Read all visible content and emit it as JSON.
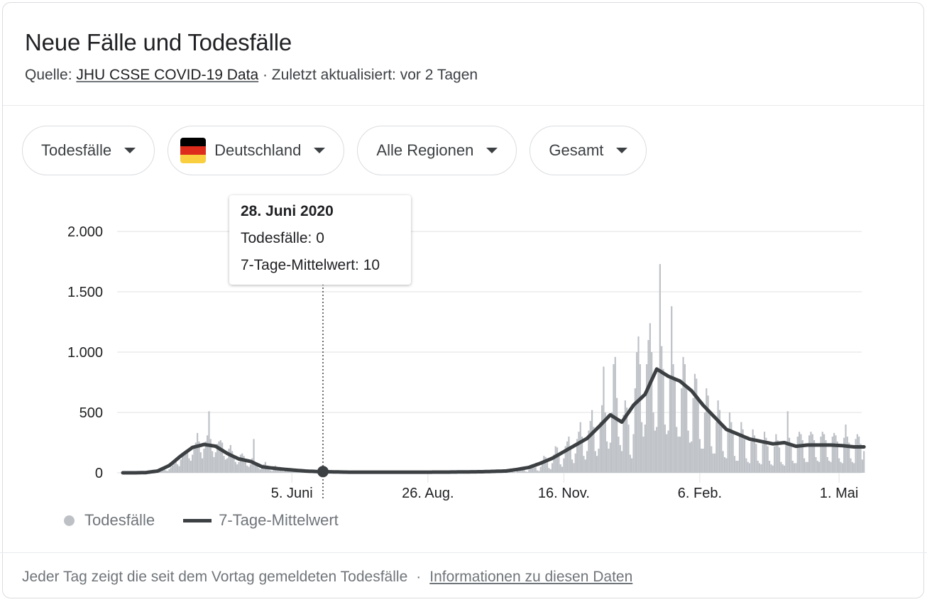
{
  "header": {
    "title": "Neue Fälle und Todesfälle",
    "source_prefix": "Quelle:",
    "source_link": "JHU CSSE COVID-19 Data",
    "updated": "· Zuletzt aktualisiert: vor 2 Tagen"
  },
  "filters": [
    {
      "label": "Todesfälle",
      "icon": "chevron-down-icon"
    },
    {
      "label": "Deutschland",
      "icon": "flag-germany-icon",
      "flag_colors": [
        "#000000",
        "#dd0000",
        "#ffce00"
      ]
    },
    {
      "label": "Alle Regionen",
      "icon": "chevron-down-icon"
    },
    {
      "label": "Gesamt",
      "icon": "chevron-down-icon"
    }
  ],
  "tooltip": {
    "date": "28. Juni 2020",
    "deaths_line": "Todesfälle: 0",
    "avg_line": "7-Tage-Mittelwert: 10"
  },
  "legend": {
    "deaths": "Todesfälle",
    "average": "7-Tage-Mittelwert"
  },
  "footer": {
    "text": "Jeder Tag zeigt die seit dem Vortag gemeldeten Todesfälle",
    "separator": "·",
    "link": "Informationen zu diesen Daten"
  },
  "colors": {
    "bars": "#bdc1c6",
    "line": "#3c4043",
    "grid": "#ebebeb",
    "axis_text": "#202124"
  },
  "chart_data": {
    "type": "bar",
    "title": "Neue Fälle und Todesfälle",
    "xlabel": "",
    "ylabel": "",
    "ylim": [
      0,
      2000
    ],
    "yticks": [
      0,
      500,
      1000,
      1500,
      2000
    ],
    "ytick_labels": [
      "0",
      "500",
      "1.000",
      "1.500",
      "2.000"
    ],
    "grid": true,
    "legend_position": "bottom-left",
    "start_date": "2020-02-24",
    "xticks": [
      {
        "day": 102,
        "label": "5. Juni"
      },
      {
        "day": 184,
        "label": "26. Aug."
      },
      {
        "day": 266,
        "label": "16. Nov."
      },
      {
        "day": 348,
        "label": "6. Feb."
      },
      {
        "day": 432,
        "label": "1. Mai"
      }
    ],
    "highlight": {
      "day": 125,
      "date": "28. Juni 2020",
      "deaths": 0,
      "avg7": 10
    },
    "series": [
      {
        "name": "Todesfälle",
        "type": "bar",
        "weekly_daily_values": [
          [
            0,
            0,
            0,
            0,
            0,
            0,
            0
          ],
          [
            0,
            0,
            0,
            0,
            0,
            0,
            1
          ],
          [
            0,
            1,
            2,
            1,
            3,
            2,
            5
          ],
          [
            5,
            10,
            15,
            20,
            25,
            20,
            15
          ],
          [
            30,
            45,
            60,
            80,
            90,
            70,
            55
          ],
          [
            110,
            140,
            160,
            180,
            170,
            120,
            100
          ],
          [
            150,
            200,
            250,
            330,
            260,
            170,
            120
          ],
          [
            200,
            260,
            310,
            510,
            280,
            180,
            130
          ],
          [
            170,
            240,
            260,
            270,
            250,
            140,
            110
          ],
          [
            120,
            200,
            230,
            180,
            140,
            90,
            70
          ],
          [
            90,
            150,
            160,
            140,
            110,
            60,
            50
          ],
          [
            70,
            120,
            280,
            90,
            80,
            40,
            30
          ],
          [
            40,
            70,
            90,
            60,
            50,
            20,
            15
          ],
          [
            30,
            60,
            50,
            40,
            30,
            15,
            10
          ],
          [
            20,
            40,
            35,
            30,
            25,
            10,
            8
          ],
          [
            15,
            30,
            25,
            20,
            18,
            8,
            5
          ],
          [
            10,
            20,
            18,
            15,
            12,
            5,
            3
          ],
          [
            8,
            12,
            15,
            10,
            8,
            0,
            0
          ],
          [
            5,
            10,
            12,
            8,
            6,
            2,
            2
          ],
          [
            4,
            8,
            10,
            6,
            5,
            2,
            1
          ],
          [
            3,
            6,
            8,
            5,
            4,
            1,
            1
          ],
          [
            3,
            6,
            8,
            5,
            4,
            1,
            1
          ],
          [
            3,
            5,
            7,
            5,
            4,
            1,
            1
          ],
          [
            3,
            5,
            7,
            5,
            4,
            1,
            1
          ],
          [
            3,
            5,
            7,
            5,
            4,
            1,
            1
          ],
          [
            3,
            5,
            7,
            5,
            4,
            1,
            1
          ],
          [
            3,
            6,
            8,
            6,
            4,
            1,
            1
          ],
          [
            4,
            6,
            9,
            6,
            5,
            2,
            1
          ],
          [
            4,
            7,
            9,
            7,
            5,
            2,
            1
          ],
          [
            5,
            8,
            10,
            8,
            6,
            2,
            2
          ],
          [
            5,
            9,
            11,
            9,
            7,
            3,
            2
          ],
          [
            6,
            10,
            13,
            10,
            8,
            3,
            2
          ],
          [
            8,
            13,
            16,
            13,
            10,
            4,
            3
          ],
          [
            10,
            18,
            22,
            18,
            14,
            6,
            4
          ],
          [
            15,
            30,
            40,
            35,
            28,
            12,
            8
          ],
          [
            25,
            50,
            70,
            60,
            45,
            20,
            15
          ],
          [
            50,
            90,
            140,
            130,
            90,
            40,
            30
          ],
          [
            80,
            150,
            220,
            210,
            150,
            70,
            50
          ],
          [
            120,
            220,
            260,
            300,
            220,
            110,
            80
          ],
          [
            160,
            280,
            340,
            420,
            300,
            140,
            110
          ],
          [
            180,
            350,
            430,
            520,
            380,
            180,
            140
          ],
          [
            200,
            420,
            560,
            880,
            500,
            260,
            200
          ],
          [
            250,
            500,
            900,
            960,
            620,
            300,
            230
          ],
          [
            180,
            480,
            600,
            540,
            400,
            150,
            120
          ],
          [
            320,
            700,
            1000,
            1130,
            900,
            420,
            300
          ],
          [
            400,
            900,
            1100,
            1240,
            1000,
            500,
            350
          ],
          [
            380,
            860,
            1730,
            1050,
            860,
            400,
            320
          ],
          [
            350,
            780,
            1380,
            900,
            780,
            380,
            300
          ],
          [
            300,
            700,
            960,
            900,
            700,
            350,
            250
          ],
          [
            260,
            620,
            820,
            780,
            600,
            280,
            200
          ],
          [
            200,
            500,
            700,
            640,
            500,
            220,
            160
          ],
          [
            160,
            420,
            600,
            520,
            400,
            180,
            130
          ],
          [
            120,
            350,
            500,
            420,
            320,
            140,
            100
          ],
          [
            100,
            300,
            420,
            360,
            280,
            120,
            90
          ],
          [
            80,
            260,
            360,
            310,
            240,
            100,
            80
          ],
          [
            70,
            240,
            340,
            290,
            220,
            100,
            70
          ],
          [
            60,
            220,
            320,
            270,
            210,
            90,
            70
          ],
          [
            60,
            230,
            510,
            290,
            230,
            100,
            80
          ],
          [
            80,
            300,
            340,
            320,
            270,
            120,
            90
          ],
          [
            90,
            310,
            340,
            320,
            270,
            130,
            100
          ],
          [
            90,
            300,
            340,
            320,
            270,
            130,
            100
          ],
          [
            90,
            300,
            330,
            310,
            260,
            120,
            90
          ],
          [
            80,
            290,
            400,
            300,
            250,
            120,
            90
          ],
          [
            80,
            280,
            320,
            300,
            240,
            110,
            180
          ]
        ]
      },
      {
        "name": "7-Tage-Mittelwert",
        "type": "line",
        "weekly_values": [
          0,
          0,
          2,
          15,
          60,
          140,
          210,
          235,
          220,
          160,
          115,
          95,
          50,
          38,
          28,
          20,
          13,
          10,
          8,
          6,
          5,
          5,
          5,
          5,
          5,
          5,
          5,
          6,
          6,
          7,
          8,
          9,
          12,
          15,
          28,
          45,
          80,
          120,
          175,
          230,
          285,
          380,
          480,
          420,
          560,
          650,
          860,
          800,
          760,
          680,
          560,
          460,
          360,
          320,
          280,
          260,
          240,
          250,
          220,
          230,
          230,
          230,
          225,
          215
        ]
      }
    ]
  }
}
